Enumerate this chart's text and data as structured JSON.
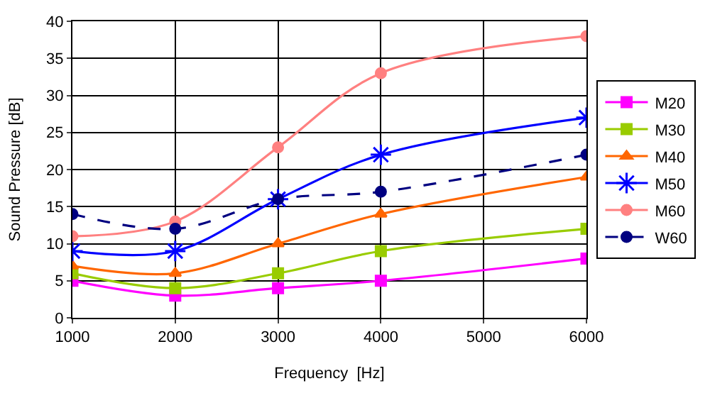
{
  "chart_data": {
    "type": "line",
    "xlabel": "Frequency  [Hz]",
    "ylabel": "Sound Pressure [dB]",
    "x": [
      1000,
      2000,
      3000,
      4000,
      6000
    ],
    "series": [
      {
        "name": "M20",
        "color": "#ff00ff",
        "marker": "square",
        "line_style": "solid",
        "values": [
          5,
          3,
          4,
          5,
          8
        ]
      },
      {
        "name": "M30",
        "color": "#99cc00",
        "marker": "square",
        "line_style": "solid",
        "values": [
          6,
          4,
          6,
          9,
          12
        ]
      },
      {
        "name": "M40",
        "color": "#ff6600",
        "marker": "triangle",
        "line_style": "solid",
        "values": [
          7,
          6,
          10,
          14,
          19
        ]
      },
      {
        "name": "M50",
        "color": "#0000ff",
        "marker": "cross",
        "line_style": "solid",
        "values": [
          9,
          9,
          16,
          22,
          27
        ]
      },
      {
        "name": "M60",
        "color": "#ff8080",
        "marker": "circle",
        "line_style": "solid",
        "values": [
          11,
          13,
          23,
          33,
          38
        ]
      },
      {
        "name": "W60",
        "color": "#000080",
        "marker": "circle",
        "line_style": "dashed",
        "values": [
          14,
          12,
          16,
          17,
          22
        ]
      }
    ],
    "xlim": [
      1000,
      6000
    ],
    "xticks": [
      1000,
      2000,
      3000,
      4000,
      5000,
      6000
    ],
    "ylim": [
      0,
      40
    ],
    "yticks": [
      0,
      5,
      10,
      15,
      20,
      25,
      30,
      35,
      40
    ],
    "grid": true,
    "legend": "right"
  }
}
